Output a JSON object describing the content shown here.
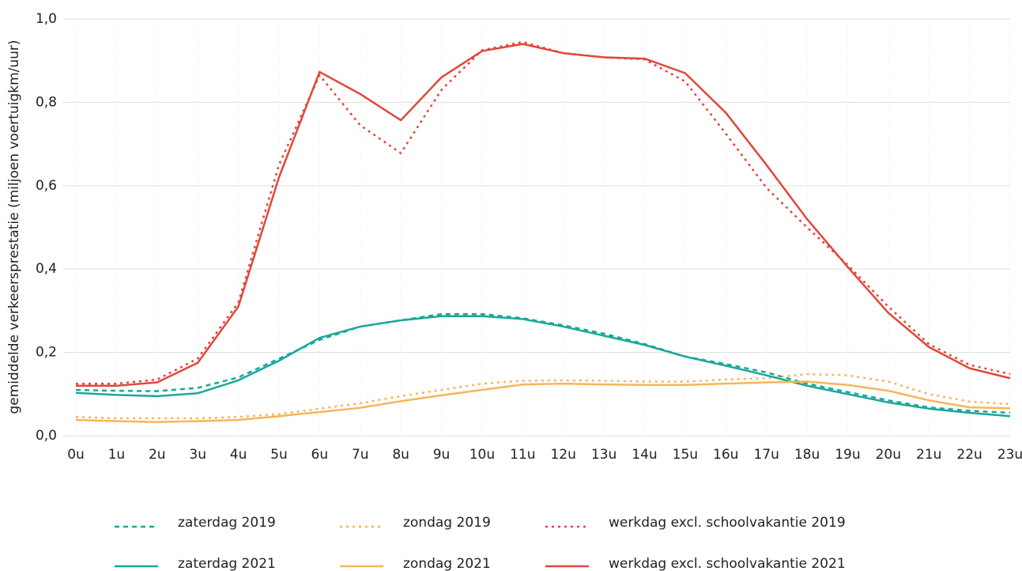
{
  "chart_data": {
    "type": "line",
    "y_label": "gemiddelde verkeersprestatie (miljoen voertuigkm/uur)",
    "categories": [
      "0u",
      "1u",
      "2u",
      "3u",
      "4u",
      "5u",
      "6u",
      "7u",
      "8u",
      "9u",
      "10u",
      "11u",
      "12u",
      "13u",
      "14u",
      "15u",
      "16u",
      "17u",
      "18u",
      "19u",
      "20u",
      "21u",
      "22u",
      "23u"
    ],
    "ylim": [
      0,
      1
    ],
    "yticks": [
      {
        "value": 0,
        "label": "0,0"
      },
      {
        "value": 0.2,
        "label": "0,2"
      },
      {
        "value": 0.4,
        "label": "0,4"
      },
      {
        "value": 0.6,
        "label": "0,6"
      },
      {
        "value": 0.8,
        "label": "0,8"
      },
      {
        "value": 1,
        "label": "1,0"
      }
    ],
    "grid": true,
    "series": [
      {
        "name": "zaterdag 2019",
        "color": "#1aa89a",
        "style": "dashed",
        "values": [
          0.11,
          0.108,
          0.107,
          0.115,
          0.14,
          0.185,
          0.23,
          0.262,
          0.277,
          0.292,
          0.292,
          0.282,
          0.265,
          0.245,
          0.22,
          0.19,
          0.172,
          0.152,
          0.125,
          0.105,
          0.085,
          0.068,
          0.06,
          0.055
        ]
      },
      {
        "name": "zondag 2019",
        "color": "#f6b55b",
        "style": "dotted",
        "values": [
          0.045,
          0.042,
          0.042,
          0.042,
          0.045,
          0.052,
          0.065,
          0.078,
          0.095,
          0.11,
          0.125,
          0.132,
          0.133,
          0.132,
          0.13,
          0.13,
          0.135,
          0.138,
          0.148,
          0.145,
          0.13,
          0.1,
          0.082,
          0.076
        ]
      },
      {
        "name": "werkdag excl. schoolvakantie 2019",
        "color": "#e0483b",
        "style": "dotted",
        "values": [
          0.125,
          0.125,
          0.135,
          0.185,
          0.32,
          0.65,
          0.865,
          0.745,
          0.678,
          0.83,
          0.925,
          0.945,
          0.918,
          0.908,
          0.903,
          0.85,
          0.725,
          0.595,
          0.5,
          0.41,
          0.31,
          0.22,
          0.17,
          0.148
        ]
      },
      {
        "name": "zaterdag 2021",
        "color": "#1aa89a",
        "style": "solid",
        "values": [
          0.103,
          0.098,
          0.095,
          0.102,
          0.133,
          0.18,
          0.235,
          0.262,
          0.277,
          0.287,
          0.287,
          0.28,
          0.262,
          0.24,
          0.218,
          0.19,
          0.168,
          0.145,
          0.12,
          0.1,
          0.08,
          0.065,
          0.055,
          0.047
        ]
      },
      {
        "name": "zondag 2021",
        "color": "#f6b55b",
        "style": "solid",
        "values": [
          0.038,
          0.035,
          0.033,
          0.035,
          0.038,
          0.047,
          0.057,
          0.067,
          0.083,
          0.097,
          0.11,
          0.123,
          0.125,
          0.123,
          0.122,
          0.122,
          0.125,
          0.128,
          0.13,
          0.122,
          0.108,
          0.085,
          0.068,
          0.066
        ]
      },
      {
        "name": "werkdag excl. schoolvakantie 2021",
        "color": "#e0483b",
        "style": "solid",
        "values": [
          0.12,
          0.12,
          0.128,
          0.175,
          0.31,
          0.62,
          0.873,
          0.82,
          0.757,
          0.86,
          0.923,
          0.94,
          0.918,
          0.908,
          0.905,
          0.87,
          0.775,
          0.65,
          0.52,
          0.405,
          0.295,
          0.213,
          0.162,
          0.138
        ]
      }
    ]
  }
}
